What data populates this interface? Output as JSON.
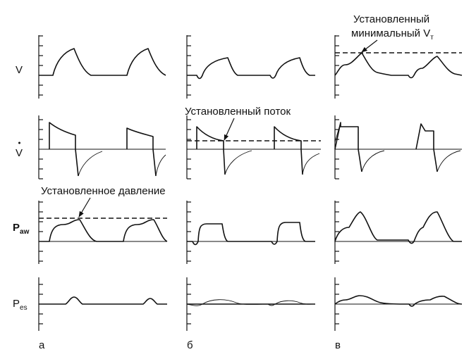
{
  "rows": [
    {
      "label": "V"
    },
    {
      "label": "V"
    },
    {
      "label": "P",
      "sub": "aw"
    },
    {
      "label": "P",
      "sub": "es"
    }
  ],
  "columns": [
    "а",
    "б",
    "в"
  ],
  "annotations": {
    "set_min_volume": {
      "line1": "Установленный",
      "line2": "минимальный V",
      "sub": "т"
    },
    "set_flow": "Установленный поток",
    "set_pressure": "Установленное давление"
  }
}
